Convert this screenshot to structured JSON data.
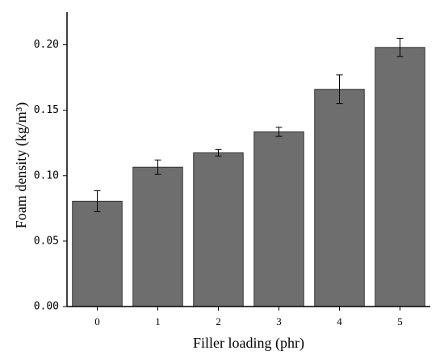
{
  "chart_data": {
    "type": "bar",
    "x_label": "Filler loading (phr)",
    "y_label": "Foam density (kg/m³)",
    "categories": [
      "0",
      "1",
      "2",
      "3",
      "4",
      "5"
    ],
    "values": [
      0.0805,
      0.1065,
      0.1175,
      0.1335,
      0.166,
      0.198
    ],
    "errors": [
      0.008,
      0.0055,
      0.0025,
      0.0035,
      0.011,
      0.007
    ],
    "color": "#6e6e6e",
    "ylim": [
      0,
      0.225
    ],
    "yticks": [
      {
        "value": 0,
        "label": "0.00"
      },
      0.05,
      {
        "value": 0.1,
        "label": "0.10"
      },
      0.15,
      {
        "value": 0.2,
        "label": "0.20"
      }
    ]
  }
}
